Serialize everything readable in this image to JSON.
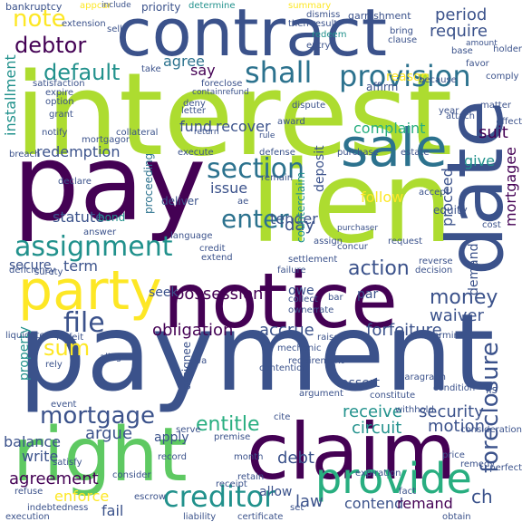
{
  "palette": {
    "purple": "#440154",
    "indigo": "#3b528b",
    "blue": "#2c728e",
    "teal": "#21918c",
    "green": "#28ae80",
    "lime": "#5ec962",
    "yellowgreen": "#addc30",
    "yellow": "#fde725"
  },
  "words": {
    "interest": "interest",
    "payment": "payment",
    "lien": "lien",
    "pay": "pay",
    "contract": "contract",
    "notice": "notice",
    "claim": "claim",
    "right": "right",
    "date": "date",
    "party": "party",
    "sale": "sale",
    "provide": "provide",
    "assignment": "assignment",
    "provision": "provision",
    "shall": "shall",
    "section": "section",
    "enter": "enter",
    "mortgage": "mortgage",
    "file": "file",
    "creditor": "creditor",
    "foreclosure": "foreclosure",
    "default": "default",
    "debtor": "debtor",
    "note": "note",
    "sum": "sum",
    "money": "money",
    "action": "action",
    "entitle": "entitle",
    "period": "period",
    "require": "require",
    "waiver": "waiver",
    "obligation": "obligation",
    "accrue": "accrue",
    "forfeiture": "forfeiture",
    "possession": "possession",
    "security": "security",
    "circuit": "circuit",
    "motion": "motion",
    "receive": "receive",
    "argue": "argue",
    "agreement": "agreement",
    "enforce": "enforce",
    "balance": "balance",
    "installment": "installment",
    "complaint": "complaint",
    "recover": "recover",
    "redemption": "redemption",
    "proceed": "proceed",
    "mortgagee": "mortgagee",
    "deposit": "deposit",
    "give": "give",
    "follow": "follow",
    "tender": "tender",
    "issue": "issue",
    "statute": "statute",
    "term": "term",
    "day": "day",
    "agree": "agree",
    "say": "say",
    "fund": "fund",
    "law": "law",
    "debt": "debt",
    "contend": "contend",
    "remand": "remand",
    "ch": "ch",
    "suit": "suit",
    "demand": "demand",
    "write": "write",
    "property": "property",
    "fail": "fail",
    "allow": "allow",
    "apply": "apply",
    "seek": "seek",
    "secure": "secure",
    "assignee": "assignee",
    "proceeding": "proceeding",
    "counterclaim": "counterclaim",
    "bond": "bond",
    "deliver": "deliver",
    "equity": "equity",
    "request": "request",
    "assign": "assign",
    "reason": "reason",
    "affirm": "affirm",
    "because": "because",
    "favor": "favor",
    "comply": "comply",
    "holder": "holder",
    "bankruptcy": "bankruptcy",
    "appcar": "appcar",
    "include": "include",
    "priority": "priority",
    "determine": "determine",
    "summary": "summary",
    "dismiss": "dismiss",
    "garnishment": "garnishment",
    "extension": "extension",
    "sell": "sell",
    "result": "result",
    "redeem": "redeem",
    "entry": "entry",
    "bring": "bring",
    "clause": "clause",
    "amount": "amount",
    "base": "base",
    "satisfaction": "satisfaction",
    "expire": "expire",
    "option": "option",
    "foreclose": "foreclose",
    "containrefund": "containrefund",
    "deny": "deny",
    "letter": "letter",
    "return": "return",
    "rule": "rule",
    "execute": "execute",
    "defense": "defense",
    "purchase": "purchase",
    "estate": "estate",
    "remain": "remain",
    "purchaser": "purchaser",
    "accept": "accept",
    "cost": "cost",
    "concur": "concur",
    "credit": "credit",
    "extend": "extend",
    "settlement": "settlement",
    "failure": "failure",
    "reverse": "reverse",
    "decision": "decision",
    "owe": "owe",
    "collect": "collect",
    "owner": "owner",
    "rate": "rate",
    "bar": "bar",
    "par": "par",
    "mechanic": "mechanic",
    "raise": "raise",
    "terminate": "terminate",
    "forfeit": "forfeit",
    "liquidate": "liquidate",
    "rely": "rely",
    "allege": "allege",
    "serve": "serve",
    "cite": "cite",
    "contention": "contention",
    "requirement": "requirement",
    "assert": "assert",
    "paragraph": "paragraph",
    "argument": "argument",
    "constitute": "constitute",
    "condition": "condition",
    "withhold": "withhold",
    "consideration": "consideration",
    "lis": "lis",
    "event": "event",
    "premise": "premise",
    "month": "month",
    "record": "record",
    "satisfy": "satisfy",
    "refuse": "refuse",
    "execution": "execution",
    "escrow": "escrow",
    "liability": "liability",
    "certificate": "certificate",
    "obtain": "obtain",
    "perfect": "perfect",
    "remedy": "remedy",
    "price": "price",
    "expiration": "expiration",
    "language": "language",
    "answer": "answer",
    "deficiency": "deficiency",
    "surety": "surety",
    "breach": "breach",
    "notify": "notify",
    "grant": "grant",
    "collateral": "collateral",
    "mortgagor": "mortgagor",
    "declare": "declare",
    "dispute": "dispute",
    "year": "year",
    "attach": "attach",
    "matter": "matter",
    "effect": "effect",
    "award": "award",
    "retain": "retain",
    "receipt": "receipt",
    "set": "set",
    "then": "then",
    "take": "take",
    "consider": "consider",
    "indebtedness": "indebtedness",
    "fact": "fact",
    "ae": "ae",
    "wa": "wa"
  }
}
